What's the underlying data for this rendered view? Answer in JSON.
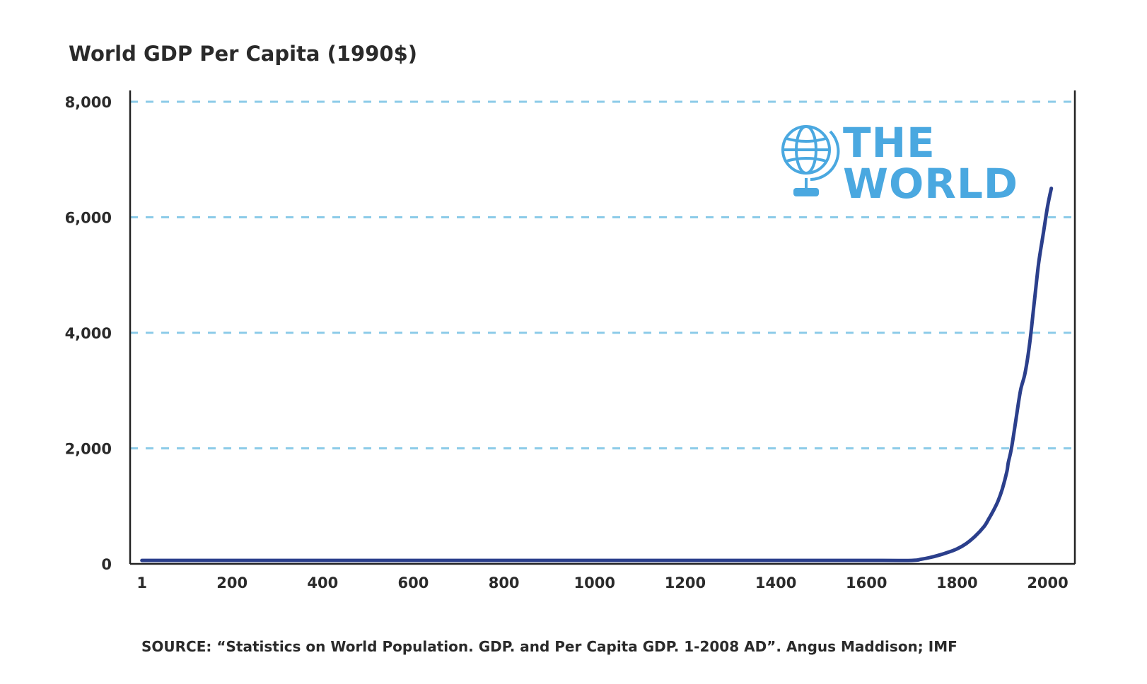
{
  "chart_data": {
    "type": "line",
    "title": "World GDP Per Capita (1990$)",
    "xlabel": "",
    "ylabel": "",
    "x_ticks": [
      "1",
      "200",
      "400",
      "600",
      "800",
      "1000",
      "1200",
      "1400",
      "1600",
      "1800",
      "2000"
    ],
    "x_tick_values": [
      1,
      200,
      400,
      600,
      800,
      1000,
      1200,
      1400,
      1600,
      1800,
      2000
    ],
    "y_ticks": [
      "0",
      "2,000",
      "4,000",
      "6,000",
      "8,000"
    ],
    "y_tick_values": [
      0,
      2000,
      4000,
      6000,
      8000
    ],
    "xlim": [
      -25,
      2060
    ],
    "ylim": [
      0,
      8000
    ],
    "grid": "horizontal dashed",
    "series": [
      {
        "name": "World GDP per capita",
        "color": "#2b3f8c",
        "x": [
          1,
          200,
          400,
          600,
          800,
          1000,
          1200,
          1400,
          1500,
          1600,
          1700,
          1720,
          1740,
          1760,
          1780,
          1800,
          1820,
          1840,
          1860,
          1870,
          1880,
          1890,
          1900,
          1910,
          1913,
          1920,
          1930,
          1940,
          1950,
          1960,
          1970,
          1980,
          1990,
          2000,
          2008
        ],
        "values": [
          60,
          60,
          60,
          60,
          60,
          60,
          60,
          60,
          60,
          60,
          60,
          80,
          110,
          150,
          200,
          260,
          350,
          480,
          650,
          780,
          920,
          1080,
          1300,
          1600,
          1750,
          2000,
          2500,
          3000,
          3300,
          3800,
          4500,
          5200,
          5700,
          6200,
          6500
        ]
      }
    ],
    "logo": {
      "line1": "THE",
      "line2": "WORLD",
      "color": "#4aa8e0"
    },
    "source": "SOURCE: “Statistics on World Population. GDP. and Per Capita GDP. 1-2008 AD”. Angus Maddison; IMF"
  }
}
